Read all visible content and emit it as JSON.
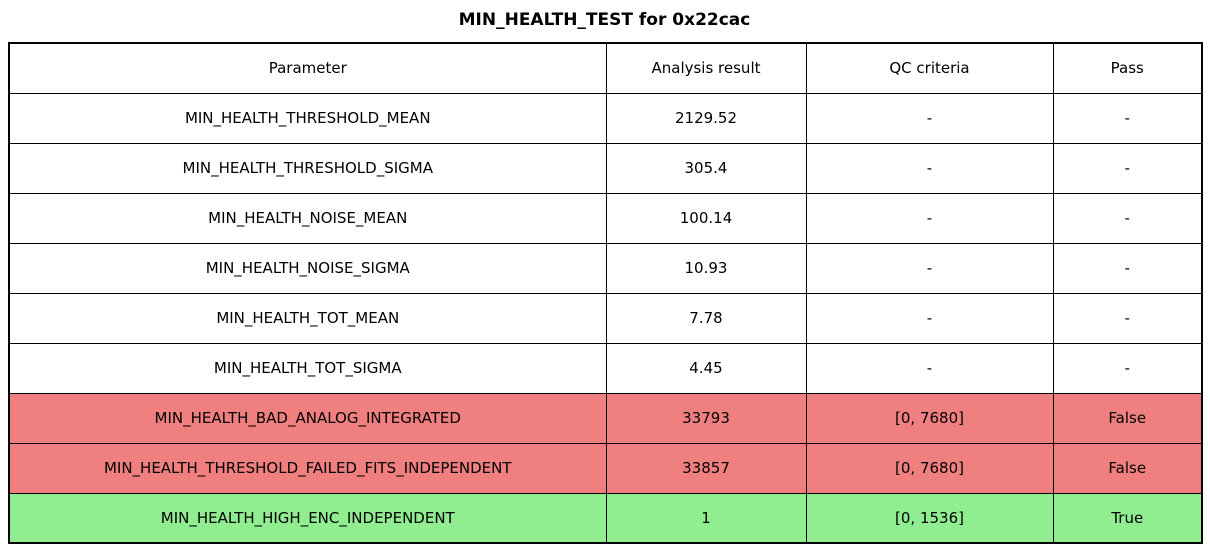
{
  "title": "MIN_HEALTH_TEST for 0x22cac",
  "table": {
    "columns": [
      "Parameter",
      "Analysis result",
      "QC criteria",
      "Pass"
    ],
    "rows": [
      {
        "cells": [
          "MIN_HEALTH_THRESHOLD_MEAN",
          "2129.52",
          "-",
          "-"
        ],
        "status": "default"
      },
      {
        "cells": [
          "MIN_HEALTH_THRESHOLD_SIGMA",
          "305.4",
          "-",
          "-"
        ],
        "status": "default"
      },
      {
        "cells": [
          "MIN_HEALTH_NOISE_MEAN",
          "100.14",
          "-",
          "-"
        ],
        "status": "default"
      },
      {
        "cells": [
          "MIN_HEALTH_NOISE_SIGMA",
          "10.93",
          "-",
          "-"
        ],
        "status": "default"
      },
      {
        "cells": [
          "MIN_HEALTH_TOT_MEAN",
          "7.78",
          "-",
          "-"
        ],
        "status": "default"
      },
      {
        "cells": [
          "MIN_HEALTH_TOT_SIGMA",
          "4.45",
          "-",
          "-"
        ],
        "status": "default"
      },
      {
        "cells": [
          "MIN_HEALTH_BAD_ANALOG_INTEGRATED",
          "33793",
          "[0, 7680]",
          "False"
        ],
        "status": "fail"
      },
      {
        "cells": [
          "MIN_HEALTH_THRESHOLD_FAILED_FITS_INDEPENDENT",
          "33857",
          "[0, 7680]",
          "False"
        ],
        "status": "fail"
      },
      {
        "cells": [
          "MIN_HEALTH_HIGH_ENC_INDEPENDENT",
          "1",
          "[0, 1536]",
          "True"
        ],
        "status": "pass"
      }
    ]
  },
  "colors": {
    "default_row": "#ffffff",
    "fail_row": "#f08080",
    "pass_row": "#90ee90",
    "border": "#000000"
  }
}
